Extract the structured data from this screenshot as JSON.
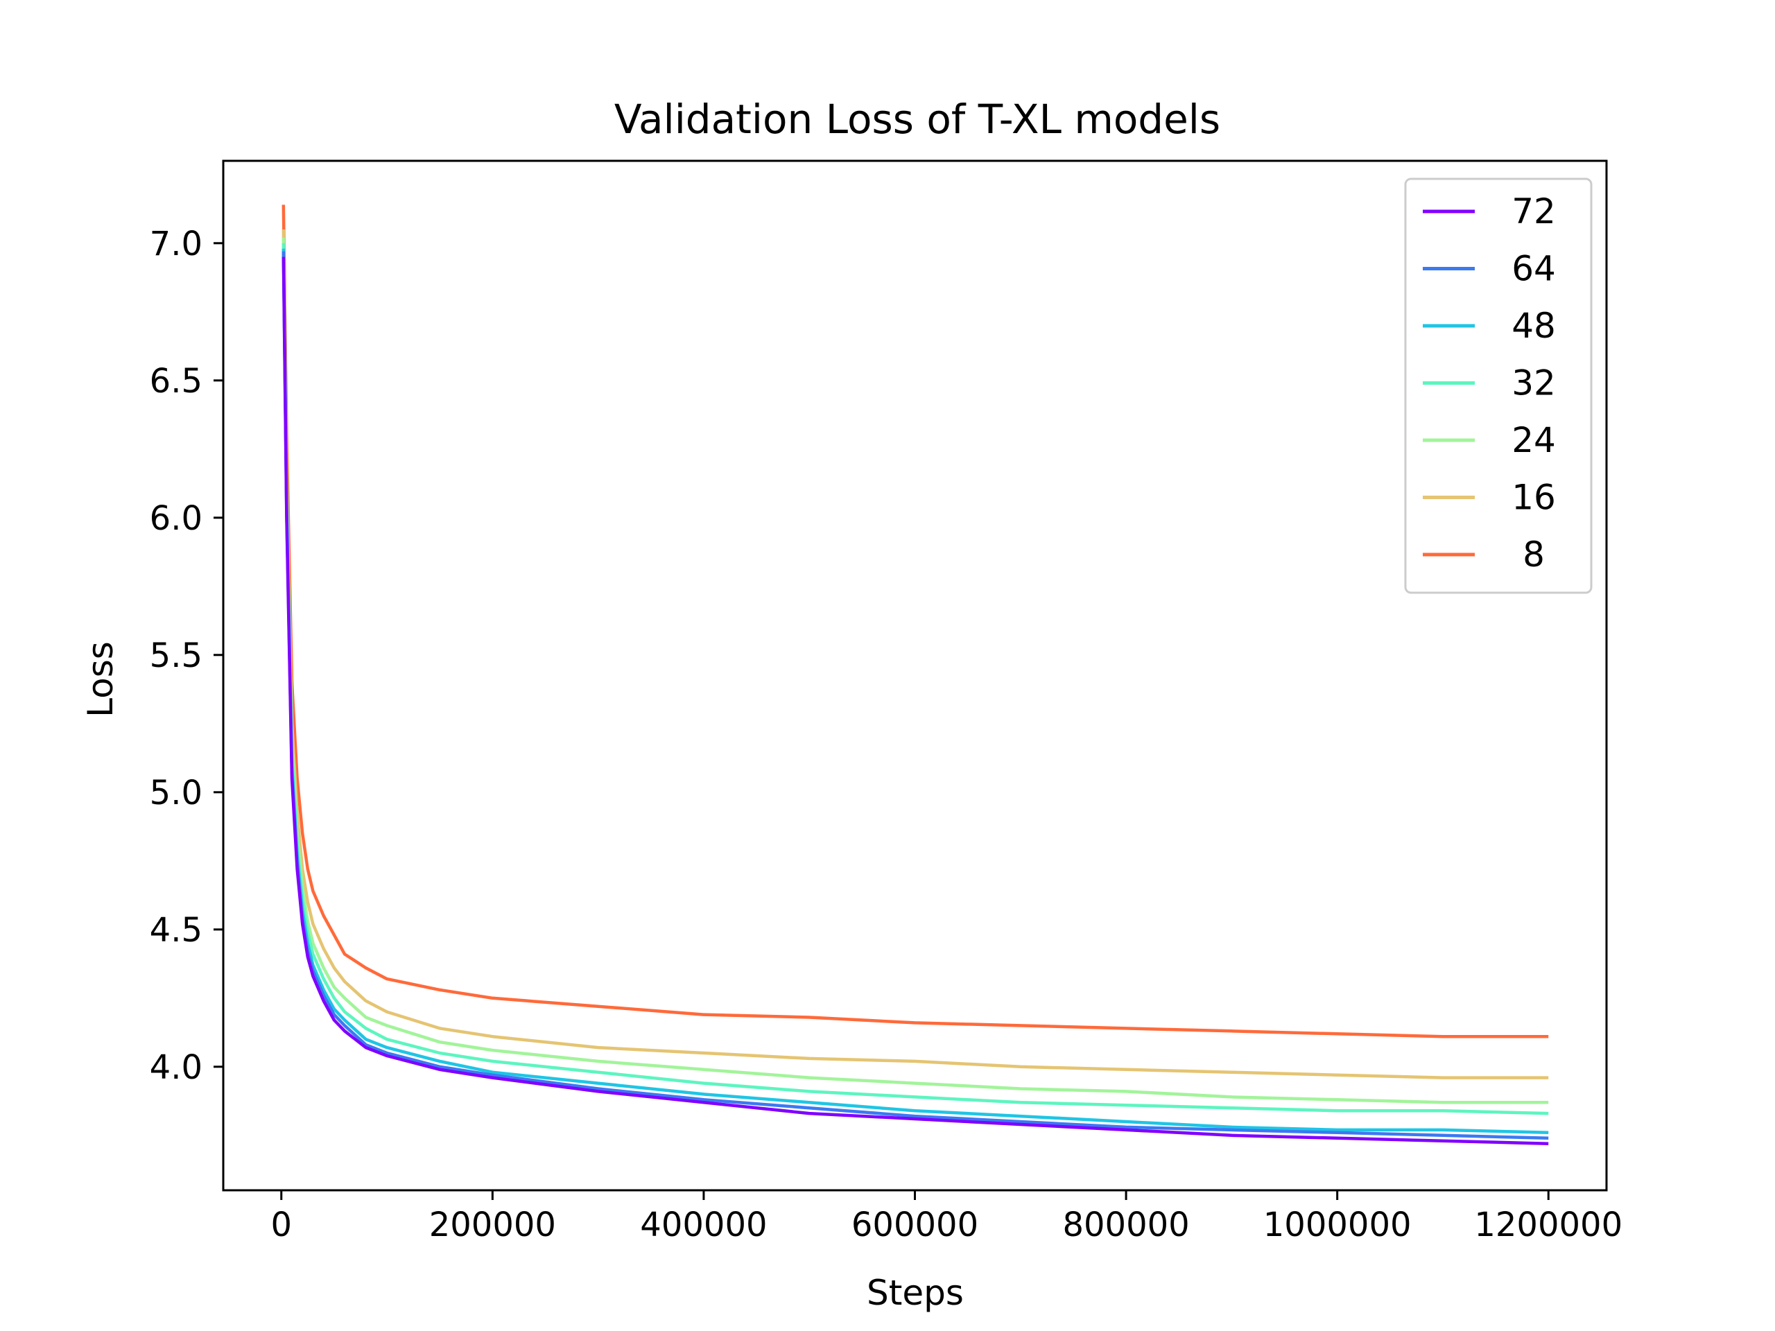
{
  "chart_data": {
    "type": "line",
    "title": "Validation Loss of T-XL models",
    "xlabel": "Steps",
    "ylabel": "Loss",
    "xlim": [
      -55000,
      1255000
    ],
    "ylim": [
      3.55,
      7.3
    ],
    "xticks": [
      0,
      200000,
      400000,
      600000,
      800000,
      1000000,
      1200000
    ],
    "xtick_labels": [
      "0",
      "200000",
      "400000",
      "600000",
      "800000",
      "1000000",
      "1200000"
    ],
    "yticks": [
      4.0,
      4.5,
      5.0,
      5.5,
      6.0,
      6.5,
      7.0
    ],
    "ytick_labels": [
      "4.0",
      "4.5",
      "5.0",
      "5.5",
      "6.0",
      "6.5",
      "7.0"
    ],
    "grid": false,
    "legend": "top-right",
    "x": [
      2000,
      5000,
      10000,
      15000,
      20000,
      25000,
      30000,
      40000,
      50000,
      60000,
      80000,
      100000,
      150000,
      200000,
      300000,
      400000,
      500000,
      600000,
      700000,
      800000,
      900000,
      1000000,
      1100000,
      1200000
    ],
    "series": [
      {
        "name": "72",
        "color": "#8000ff",
        "values": [
          6.95,
          6.0,
          5.05,
          4.72,
          4.52,
          4.4,
          4.33,
          4.24,
          4.17,
          4.13,
          4.07,
          4.04,
          3.99,
          3.96,
          3.91,
          3.87,
          3.83,
          3.81,
          3.79,
          3.77,
          3.75,
          3.74,
          3.73,
          3.72
        ]
      },
      {
        "name": "64",
        "color": "#3b79f2",
        "values": [
          6.97,
          6.02,
          5.07,
          4.74,
          4.54,
          4.42,
          4.35,
          4.26,
          4.19,
          4.15,
          4.08,
          4.05,
          4.0,
          3.97,
          3.92,
          3.88,
          3.85,
          3.82,
          3.8,
          3.78,
          3.77,
          3.76,
          3.75,
          3.74
        ]
      },
      {
        "name": "48",
        "color": "#1fc5e4",
        "values": [
          6.98,
          6.04,
          5.1,
          4.77,
          4.57,
          4.45,
          4.37,
          4.28,
          4.21,
          4.17,
          4.1,
          4.07,
          4.02,
          3.98,
          3.94,
          3.9,
          3.87,
          3.84,
          3.82,
          3.8,
          3.78,
          3.77,
          3.77,
          3.76
        ]
      },
      {
        "name": "32",
        "color": "#5df5c0",
        "values": [
          7.0,
          6.07,
          5.14,
          4.81,
          4.61,
          4.49,
          4.41,
          4.32,
          4.25,
          4.2,
          4.14,
          4.1,
          4.05,
          4.02,
          3.98,
          3.94,
          3.91,
          3.89,
          3.87,
          3.86,
          3.85,
          3.84,
          3.84,
          3.83
        ]
      },
      {
        "name": "24",
        "color": "#a2f49a",
        "values": [
          7.02,
          6.1,
          5.18,
          4.85,
          4.65,
          4.53,
          4.45,
          4.36,
          4.29,
          4.25,
          4.18,
          4.15,
          4.09,
          4.06,
          4.02,
          3.99,
          3.96,
          3.94,
          3.92,
          3.91,
          3.89,
          3.88,
          3.87,
          3.87
        ]
      },
      {
        "name": "16",
        "color": "#e5c472",
        "values": [
          7.05,
          6.15,
          5.25,
          4.92,
          4.72,
          4.6,
          4.52,
          4.43,
          4.36,
          4.31,
          4.24,
          4.2,
          4.14,
          4.11,
          4.07,
          4.05,
          4.03,
          4.02,
          4.0,
          3.99,
          3.98,
          3.97,
          3.96,
          3.96
        ]
      },
      {
        "name": "8",
        "color": "#ff6a3a",
        "values": [
          7.14,
          6.3,
          5.4,
          5.05,
          4.85,
          4.72,
          4.64,
          4.55,
          4.48,
          4.41,
          4.36,
          4.32,
          4.28,
          4.25,
          4.22,
          4.19,
          4.18,
          4.16,
          4.15,
          4.14,
          4.13,
          4.12,
          4.11,
          4.11
        ]
      }
    ]
  }
}
